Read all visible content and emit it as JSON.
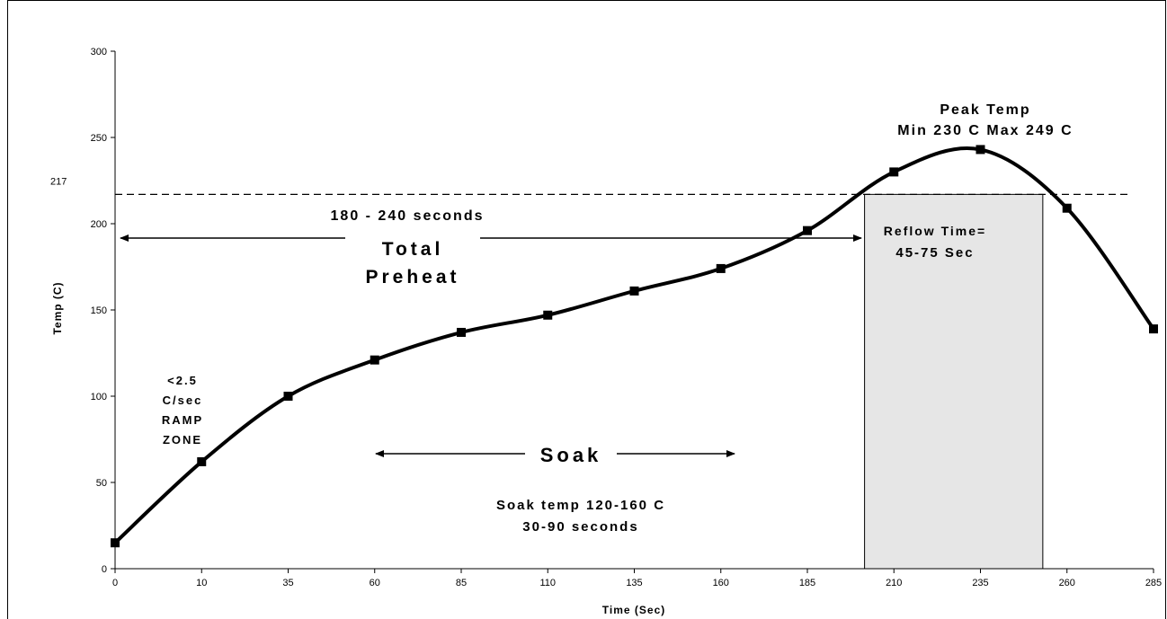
{
  "chart_data": {
    "type": "line",
    "xlabel": "Time (Sec)",
    "ylabel": "Temp (C)",
    "x": [
      0,
      10,
      35,
      60,
      85,
      110,
      135,
      160,
      185,
      210,
      235,
      260,
      285
    ],
    "series": [
      {
        "values": [
          15,
          62,
          100,
          121,
          137,
          147,
          161,
          174,
          196,
          230,
          243,
          209,
          139
        ]
      }
    ],
    "yticks": [
      "0",
      "50",
      "100",
      "150",
      "200",
      "250",
      "300"
    ],
    "xticks": [
      "0",
      "10",
      "35",
      "60",
      "85",
      "110",
      "135",
      "160",
      "185",
      "210",
      "235",
      "260",
      "285"
    ],
    "ylim": [
      0,
      300
    ],
    "grid": false,
    "reference_line": {
      "value": 217,
      "label": "217"
    },
    "reflow_region": {
      "temp_threshold": 217
    },
    "annotations": {
      "peak_title": "Peak Temp",
      "peak_range": "Min 230 C Max 249 C",
      "preheat_time": "180 - 240 seconds",
      "preheat_total": "Total",
      "preheat_label": "Preheat",
      "reflow_line1": "Reflow Time=",
      "reflow_line2": "45-75 Sec",
      "ramp_line1": "<2.5",
      "ramp_line2": "C/sec",
      "ramp_line3": "RAMP",
      "ramp_line4": "ZONE",
      "soak_label": "Soak",
      "soak_temp": "Soak temp 120-160 C",
      "soak_time": "30-90 seconds"
    }
  }
}
